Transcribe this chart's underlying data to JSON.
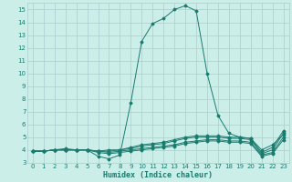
{
  "xlabel": "Humidex (Indice chaleur)",
  "xlim": [
    -0.5,
    23.5
  ],
  "ylim": [
    3,
    15.5
  ],
  "yticks": [
    3,
    4,
    5,
    6,
    7,
    8,
    9,
    10,
    11,
    12,
    13,
    14,
    15
  ],
  "xticks": [
    0,
    1,
    2,
    3,
    4,
    5,
    6,
    7,
    8,
    9,
    10,
    11,
    12,
    13,
    14,
    15,
    16,
    17,
    18,
    19,
    20,
    21,
    22,
    23
  ],
  "bg_color": "#cbeee9",
  "grid_color": "#aacccc",
  "line_color": "#1a7a6e",
  "lines": [
    {
      "x": [
        0,
        1,
        2,
        3,
        4,
        5,
        6,
        7,
        8,
        9,
        10,
        11,
        12,
        13,
        14,
        15,
        16,
        17,
        18,
        19,
        20,
        21,
        22,
        23
      ],
      "y": [
        3.9,
        3.9,
        4.0,
        4.1,
        4.0,
        4.0,
        3.5,
        3.3,
        3.6,
        7.7,
        12.5,
        13.9,
        14.3,
        15.0,
        15.3,
        14.9,
        10.0,
        6.7,
        5.3,
        5.0,
        4.9,
        4.0,
        4.4,
        5.2
      ]
    },
    {
      "x": [
        0,
        1,
        2,
        3,
        4,
        5,
        6,
        7,
        8,
        9,
        10,
        11,
        12,
        13,
        14,
        15,
        16,
        17,
        18,
        19,
        20,
        21,
        22,
        23
      ],
      "y": [
        3.9,
        3.9,
        4.0,
        4.0,
        4.0,
        4.0,
        3.9,
        4.0,
        4.0,
        4.2,
        4.4,
        4.5,
        4.6,
        4.8,
        5.0,
        5.1,
        5.1,
        5.1,
        5.0,
        5.0,
        4.9,
        3.8,
        4.2,
        5.5
      ]
    },
    {
      "x": [
        0,
        1,
        2,
        3,
        4,
        5,
        6,
        7,
        8,
        9,
        10,
        11,
        12,
        13,
        14,
        15,
        16,
        17,
        18,
        19,
        20,
        21,
        22,
        23
      ],
      "y": [
        3.9,
        3.9,
        4.0,
        4.0,
        4.0,
        4.0,
        3.9,
        3.9,
        4.0,
        4.1,
        4.3,
        4.4,
        4.5,
        4.7,
        4.9,
        5.0,
        5.0,
        5.0,
        4.9,
        4.9,
        4.8,
        3.7,
        4.0,
        5.3
      ]
    },
    {
      "x": [
        0,
        1,
        2,
        3,
        4,
        5,
        6,
        7,
        8,
        9,
        10,
        11,
        12,
        13,
        14,
        15,
        16,
        17,
        18,
        19,
        20,
        21,
        22,
        23
      ],
      "y": [
        3.9,
        3.9,
        4.0,
        4.0,
        4.0,
        4.0,
        3.9,
        3.8,
        3.9,
        4.0,
        4.1,
        4.2,
        4.3,
        4.4,
        4.6,
        4.7,
        4.8,
        4.8,
        4.7,
        4.7,
        4.6,
        3.6,
        3.8,
        5.0
      ]
    },
    {
      "x": [
        0,
        1,
        2,
        3,
        4,
        5,
        6,
        7,
        8,
        9,
        10,
        11,
        12,
        13,
        14,
        15,
        16,
        17,
        18,
        19,
        20,
        21,
        22,
        23
      ],
      "y": [
        3.9,
        3.9,
        4.0,
        4.0,
        4.0,
        4.0,
        3.8,
        3.7,
        3.8,
        3.9,
        4.0,
        4.1,
        4.2,
        4.3,
        4.5,
        4.6,
        4.7,
        4.7,
        4.6,
        4.6,
        4.5,
        3.5,
        3.7,
        4.8
      ]
    }
  ]
}
